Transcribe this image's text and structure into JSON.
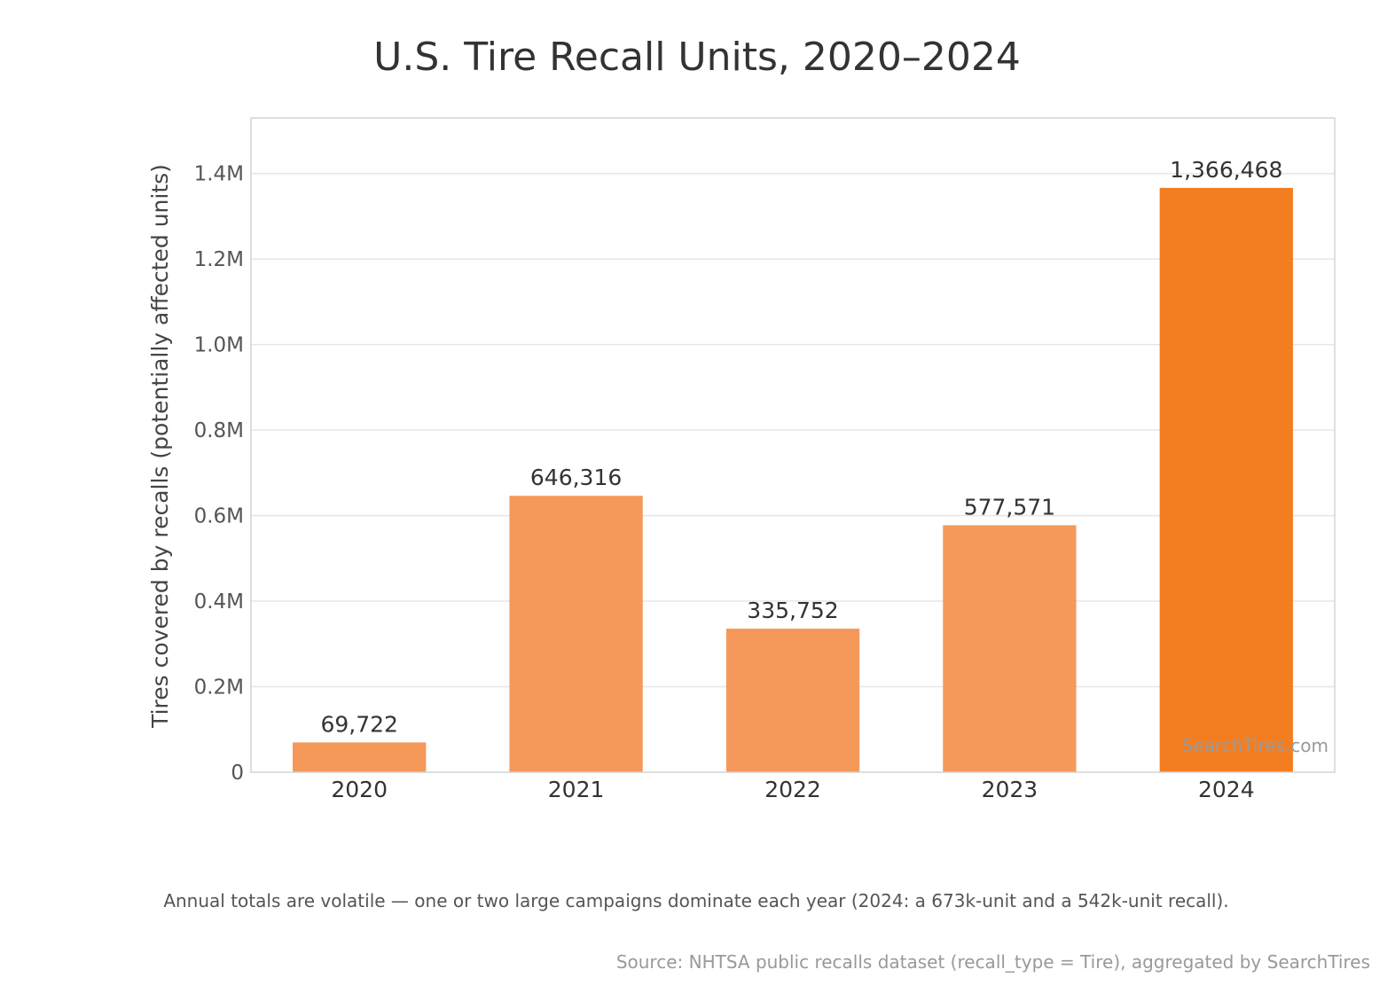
{
  "chart_data": {
    "type": "bar",
    "title": "U.S. Tire Recall Units, 2020–2024",
    "xlabel": "",
    "ylabel": "Tires covered by recalls (potentially affected units)",
    "categories": [
      "2020",
      "2021",
      "2022",
      "2023",
      "2024"
    ],
    "values": [
      69722,
      646316,
      335752,
      577571,
      1366468
    ],
    "value_labels": [
      "69,722",
      "646,316",
      "335,752",
      "577,571",
      "1,366,468"
    ],
    "ylim": [
      0,
      1530000
    ],
    "yticks": [
      0,
      200000,
      400000,
      600000,
      800000,
      1000000,
      1200000,
      1400000
    ],
    "ytick_labels": [
      "0",
      "0.2M",
      "0.4M",
      "0.6M",
      "0.8M",
      "1.0M",
      "1.2M",
      "1.4M"
    ],
    "grid": true,
    "highlight_index": 4,
    "colors": {
      "bar": "#f4995a",
      "highlight": "#f37e22",
      "grid": "#e6e6e6",
      "frame": "#d4d4d4"
    }
  },
  "watermark": "SearchTires.com",
  "caption": "Annual totals are volatile — one or two large campaigns dominate each year (2024: a 673k-unit and a 542k-unit recall).",
  "source": "Source: NHTSA public recalls dataset (recall_type = Tire), aggregated by SearchTires"
}
